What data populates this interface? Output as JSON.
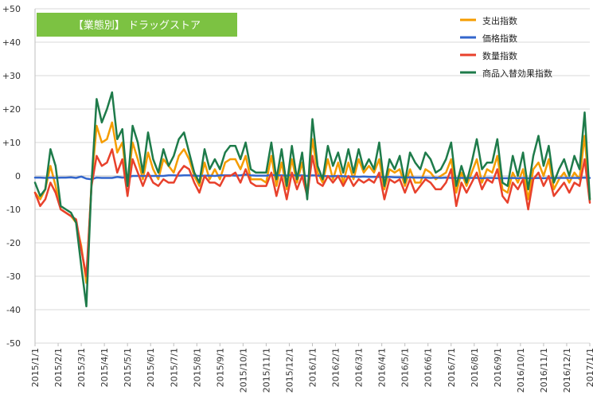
{
  "chart_data": {
    "type": "line",
    "title": "【業態別】 ドラッグストア",
    "title_color": "#7cc242",
    "xlabel": "",
    "ylabel": "",
    "ylim": [
      -50,
      50
    ],
    "y_ticks": [
      50,
      40,
      30,
      20,
      10,
      0,
      -10,
      -20,
      -30,
      -40,
      -50
    ],
    "y_tick_labels": [
      "+50",
      "+40",
      "+30",
      "+20",
      "+10",
      "0",
      "-10",
      "-20",
      "-30",
      "-40",
      "-50"
    ],
    "x_ticks": [
      "2015/1/1",
      "2015/2/1",
      "2015/3/1",
      "2015/4/1",
      "2015/5/1",
      "2015/6/1",
      "2015/7/1",
      "2015/8/1",
      "2015/9/1",
      "2015/10/1",
      "2015/11/1",
      "2015/12/1",
      "2016/1/1",
      "2016/2/1",
      "2016/3/1",
      "2016/4/1",
      "2016/5/1",
      "2016/6/1",
      "2016/7/1",
      "2016/8/1",
      "2016/9/1",
      "2016/10/1",
      "2016/11/1",
      "2016/12/1",
      "2017/1/1"
    ],
    "grid": true,
    "legend_position": "top-right",
    "series": [
      {
        "name": "支出指数",
        "color": "#f59c00",
        "values": [
          -5,
          -7,
          -4,
          3,
          -3,
          -10,
          -11,
          -12,
          -14,
          -21,
          -32,
          -2,
          15,
          10,
          11,
          16,
          7,
          10,
          -3,
          10,
          5,
          -1,
          7,
          2,
          -1,
          5,
          3,
          1,
          6,
          8,
          5,
          0,
          -3,
          4,
          -1,
          2,
          -1,
          4,
          5,
          5,
          2,
          6,
          -1,
          -1,
          -1,
          -2,
          6,
          -3,
          4,
          -4,
          5,
          -2,
          4,
          -5,
          11,
          1,
          -2,
          5,
          -1,
          4,
          -2,
          4,
          -1,
          5,
          1,
          3,
          1,
          5,
          -4,
          2,
          1,
          2,
          -3,
          2,
          -2,
          -2,
          2,
          1,
          -1,
          0,
          1,
          5,
          -5,
          1,
          -3,
          1,
          5,
          -2,
          2,
          1,
          6,
          -4,
          -5,
          1,
          -2,
          2,
          -7,
          2,
          4,
          0,
          5,
          -4,
          -1,
          1,
          -2,
          1,
          -1,
          12,
          -7
        ]
      },
      {
        "name": "価格指数",
        "color": "#3366cc",
        "values": [
          -0.5,
          -0.5,
          -0.6,
          -0.5,
          -0.6,
          -0.5,
          -0.5,
          -0.4,
          -0.6,
          -0.2,
          -0.8,
          -1,
          -0.5,
          -0.6,
          -0.6,
          -0.6,
          -0.3,
          -0.5,
          -0.4,
          0,
          0,
          0,
          0,
          0,
          0,
          0,
          0.2,
          0.2,
          0.1,
          0.2,
          0.2,
          0.1,
          0,
          0.1,
          0.1,
          0,
          0.2,
          0.2,
          0.2,
          0.1,
          0.2,
          0.4,
          0.2,
          0.1,
          0.1,
          0.1,
          0.3,
          0.2,
          0.2,
          0.1,
          0.3,
          0.1,
          0.2,
          0,
          0.2,
          0.1,
          0,
          -0.1,
          -0.1,
          0,
          -0.1,
          -0.2,
          -0.2,
          -0.3,
          -0.2,
          -0.3,
          -0.3,
          -0.3,
          -0.4,
          -0.3,
          -0.4,
          -0.4,
          -0.5,
          -0.4,
          -0.5,
          -0.5,
          -0.5,
          -0.6,
          -0.5,
          -0.6,
          -0.5,
          -0.6,
          -0.6,
          -0.6,
          -0.6,
          -0.6,
          -0.6,
          -0.7,
          -0.6,
          -0.6,
          -0.7,
          -0.7,
          -0.7,
          -0.6,
          -0.7,
          -0.6,
          -0.7,
          -0.7,
          -0.6,
          -0.7,
          -0.6,
          -0.6,
          -0.6,
          -0.6,
          -0.6,
          -0.6,
          -0.6,
          -0.5,
          -0.6
        ]
      },
      {
        "name": "数量指数",
        "color": "#e8412c",
        "values": [
          -5,
          -9,
          -7,
          -2,
          -5,
          -10,
          -11,
          -12,
          -13,
          -22,
          -30,
          -3,
          6,
          3,
          4,
          8,
          1,
          5,
          -6,
          5,
          1,
          -3,
          1,
          -2,
          -3,
          -1,
          -2,
          -2,
          1,
          3,
          2,
          -2,
          -5,
          0,
          -2,
          -2,
          -3,
          0,
          0,
          1,
          -2,
          2,
          -2,
          -3,
          -3,
          -3,
          1,
          -6,
          0,
          -7,
          1,
          -4,
          0,
          -6,
          6,
          -2,
          -3,
          0,
          -2,
          0,
          -3,
          0,
          -3,
          -1,
          -2,
          -1,
          -2,
          1,
          -7,
          -1,
          -2,
          -1,
          -5,
          -1,
          -5,
          -3,
          -1,
          -2,
          -4,
          -4,
          -2,
          2,
          -9,
          -2,
          -5,
          -2,
          1,
          -4,
          -1,
          -2,
          2,
          -6,
          -8,
          -2,
          -4,
          -1,
          -10,
          -1,
          1,
          -3,
          0,
          -6,
          -4,
          -2,
          -5,
          -2,
          -3,
          5,
          -8
        ]
      },
      {
        "name": "商品入替効果指数",
        "color": "#1e7b4a",
        "values": [
          -2,
          -6,
          -4,
          8,
          3,
          -9,
          -10,
          -11,
          -14,
          -27,
          -39,
          -2,
          23,
          16,
          20,
          25,
          11,
          14,
          -3,
          15,
          10,
          1,
          13,
          5,
          1,
          8,
          3,
          6,
          11,
          13,
          7,
          1,
          -2,
          8,
          2,
          5,
          2,
          7,
          9,
          9,
          5,
          10,
          2,
          1,
          1,
          1,
          10,
          -1,
          8,
          -3,
          9,
          -1,
          7,
          -7,
          17,
          3,
          -1,
          9,
          3,
          7,
          1,
          8,
          1,
          8,
          2,
          5,
          2,
          10,
          -3,
          5,
          2,
          6,
          -2,
          7,
          4,
          2,
          7,
          5,
          1,
          2,
          5,
          10,
          -3,
          3,
          -2,
          4,
          11,
          2,
          4,
          4,
          11,
          -2,
          -3,
          6,
          0,
          7,
          -4,
          6,
          12,
          3,
          9,
          -2,
          2,
          5,
          0,
          6,
          2,
          19,
          -7
        ]
      }
    ]
  }
}
